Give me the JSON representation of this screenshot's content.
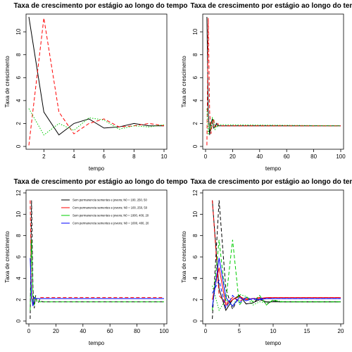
{
  "chart_data": [
    {
      "type": "line",
      "title": "Taxa de crescimento por estágio ao longo do tempo",
      "xlabel": "tempo",
      "ylabel": "Taxa de crescimento",
      "xlim": [
        1,
        10
      ],
      "ylim": [
        0,
        11.3
      ],
      "xticks": [
        2,
        4,
        6,
        8,
        10
      ],
      "yticks": [
        0,
        2,
        4,
        6,
        8,
        10
      ],
      "series": [
        {
          "color": "#000000",
          "style": "solid",
          "x": [
            1,
            2,
            3,
            4,
            5,
            6,
            7,
            8,
            9,
            10
          ],
          "y": [
            11.3,
            3.0,
            1.0,
            2.0,
            2.4,
            1.6,
            1.7,
            2.0,
            1.8,
            1.8
          ]
        },
        {
          "color": "#ff0000",
          "style": "dashed",
          "x": [
            1,
            2,
            3,
            4,
            5,
            6,
            7,
            8,
            9,
            10
          ],
          "y": [
            0.1,
            11.2,
            3.0,
            1.1,
            2.0,
            2.4,
            1.7,
            1.8,
            2.0,
            1.8
          ]
        },
        {
          "color": "#00cc00",
          "style": "dotted",
          "x": [
            1,
            2,
            3,
            4,
            5,
            6,
            7,
            8,
            9,
            10
          ],
          "y": [
            3.3,
            1.0,
            2.0,
            1.4,
            2.5,
            2.3,
            1.5,
            1.8,
            1.7,
            1.9
          ]
        }
      ]
    },
    {
      "type": "line",
      "title": "Taxa de crescimento por estágio ao longo do tempo",
      "xlabel": "tempo",
      "ylabel": "Taxa de crescimento",
      "xlim": [
        0,
        100
      ],
      "ylim": [
        0,
        11.3
      ],
      "xticks": [
        0,
        20,
        40,
        60,
        80,
        100
      ],
      "yticks": [
        0,
        2,
        4,
        6,
        8,
        10
      ],
      "series": [
        {
          "color": "#000000",
          "style": "solid",
          "x": [
            1,
            2,
            3,
            4,
            5,
            6,
            7,
            8,
            9,
            10,
            100
          ],
          "y": [
            11.3,
            3.0,
            1.0,
            2.0,
            2.4,
            1.6,
            1.7,
            2.0,
            1.8,
            1.8,
            1.8
          ]
        },
        {
          "color": "#ff0000",
          "style": "dashed",
          "x": [
            1,
            2,
            3,
            4,
            5,
            6,
            7,
            8,
            9,
            10,
            100
          ],
          "y": [
            0.1,
            11.2,
            3.0,
            1.1,
            2.0,
            2.4,
            1.7,
            1.8,
            2.0,
            1.8,
            1.8
          ]
        },
        {
          "color": "#00cc00",
          "style": "dotted",
          "x": [
            1,
            2,
            3,
            4,
            5,
            6,
            7,
            8,
            9,
            10,
            100
          ],
          "y": [
            3.3,
            1.0,
            2.0,
            1.4,
            2.5,
            2.3,
            1.5,
            1.8,
            1.7,
            1.9,
            1.8
          ]
        }
      ]
    },
    {
      "type": "line",
      "title": "Taxa de crescimento por estágio ao longo do tempo",
      "xlabel": "tempo",
      "ylabel": "Taxa de crescimento",
      "xlim": [
        0,
        100
      ],
      "ylim": [
        0,
        12
      ],
      "xticks": [
        0,
        20,
        40,
        60,
        80,
        100
      ],
      "yticks": [
        0,
        2,
        4,
        6,
        8,
        10,
        12
      ],
      "legend": {
        "position": "top-right",
        "entries": [
          {
            "label": "Sem permanencia sementes e jovens; N0 = 100, 250, 50",
            "color": "#000000"
          },
          {
            "label": "Com permanencia sementes e jovens; N0 = 100, 250, 50",
            "color": "#ff0000"
          },
          {
            "label": "Sem permanencia sementes e jovens; N0 = 1000, 400, 20",
            "color": "#00cc00"
          },
          {
            "label": "Com permanencia sementes e jovens; N0 = 1000, 400, 20",
            "color": "#0000ff"
          }
        ]
      },
      "series": [
        {
          "color": "#000000",
          "style": "dashed",
          "x": [
            1,
            2,
            3,
            4,
            5,
            6,
            7,
            8,
            10,
            100
          ],
          "y": [
            0.2,
            11.3,
            3.0,
            1.2,
            2.4,
            1.8,
            1.7,
            2.0,
            1.8,
            1.8
          ]
        },
        {
          "color": "#ff0000",
          "style": "dashed",
          "x": [
            1,
            2,
            3,
            4,
            5,
            6,
            7,
            8,
            10,
            100
          ],
          "y": [
            11.3,
            2.4,
            1.6,
            2.2,
            2.0,
            2.1,
            2.1,
            2.2,
            2.2,
            2.2
          ]
        },
        {
          "color": "#00cc00",
          "style": "dashed",
          "x": [
            1,
            2,
            3,
            4,
            5,
            6,
            7,
            8,
            10,
            100
          ],
          "y": [
            1.0,
            7.6,
            1.9,
            1.5,
            2.3,
            1.8,
            1.9,
            1.8,
            1.8,
            1.8
          ]
        },
        {
          "color": "#0000ff",
          "style": "solid",
          "x": [
            1,
            2,
            3,
            4,
            5,
            6,
            7,
            8,
            10,
            100
          ],
          "y": [
            5.9,
            2.2,
            1.4,
            2.2,
            2.1,
            2.1,
            2.1,
            2.1,
            2.1,
            2.1
          ]
        }
      ]
    },
    {
      "type": "line",
      "title": "Taxa de crescimento por estágio ao longo do tempo",
      "xlabel": "tempo",
      "ylabel": "Taxa de crescimento",
      "xlim": [
        0,
        20
      ],
      "ylim": [
        0,
        12
      ],
      "xticks": [
        0,
        5,
        10,
        15,
        20
      ],
      "yticks": [
        0,
        2,
        4,
        6,
        8,
        10,
        12
      ],
      "series": [
        {
          "color": "#000000",
          "style": "dashed",
          "x": [
            1,
            2,
            3,
            4,
            5,
            6,
            7,
            8,
            9,
            10,
            11,
            12,
            20
          ],
          "y": [
            0.2,
            11.3,
            3.0,
            1.1,
            2.4,
            1.6,
            1.7,
            2.2,
            1.6,
            1.9,
            1.8,
            1.8,
            1.8
          ]
        },
        {
          "color": "#000000",
          "style": "solid",
          "x": [
            1,
            2,
            3,
            4,
            5,
            6,
            7,
            8,
            9,
            10,
            12,
            20
          ],
          "y": [
            11.3,
            3.0,
            1.0,
            2.0,
            2.4,
            1.6,
            1.7,
            2.0,
            1.8,
            1.8,
            1.8,
            1.8
          ]
        },
        {
          "color": "#ff0000",
          "style": "dashed",
          "x": [
            1,
            2,
            3,
            4,
            5,
            6,
            7,
            8,
            9,
            10,
            12,
            20
          ],
          "y": [
            11.3,
            2.4,
            1.6,
            2.2,
            1.9,
            2.1,
            2.1,
            2.2,
            2.1,
            2.2,
            2.2,
            2.2
          ]
        },
        {
          "color": "#ff0000",
          "style": "solid",
          "x": [
            1,
            2,
            3,
            4,
            5,
            6,
            7,
            8,
            9,
            10,
            12,
            20
          ],
          "y": [
            2.0,
            5.0,
            1.5,
            2.0,
            2.3,
            2.0,
            2.1,
            2.1,
            2.2,
            2.2,
            2.2,
            2.2
          ]
        },
        {
          "color": "#00cc00",
          "style": "dashed",
          "x": [
            1,
            2,
            3,
            4,
            5,
            6,
            7,
            8,
            9,
            10,
            11,
            12,
            20
          ],
          "y": [
            1.0,
            7.6,
            1.9,
            7.6,
            1.5,
            2.3,
            1.8,
            2.4,
            1.5,
            2.0,
            1.8,
            1.8,
            1.8
          ]
        },
        {
          "color": "#00cc00",
          "style": "dotted",
          "x": [
            1,
            2,
            3,
            4,
            5,
            6,
            7,
            8,
            9,
            10,
            12,
            20
          ],
          "y": [
            3.3,
            1.0,
            2.0,
            1.4,
            2.5,
            2.3,
            1.5,
            1.8,
            1.7,
            1.9,
            1.8,
            1.8
          ]
        },
        {
          "color": "#0000ff",
          "style": "solid",
          "x": [
            1,
            2,
            3,
            4,
            5,
            6,
            7,
            8,
            9,
            10,
            12,
            20
          ],
          "y": [
            1.3,
            5.9,
            2.2,
            1.4,
            2.2,
            1.9,
            2.1,
            2.0,
            2.1,
            2.1,
            2.1,
            2.1
          ]
        },
        {
          "color": "#0000ff",
          "style": "dashed",
          "x": [
            1,
            2,
            3,
            4,
            5,
            6,
            7,
            8,
            9,
            10,
            12,
            20
          ],
          "y": [
            2.6,
            3.8,
            1.2,
            2.4,
            1.7,
            2.2,
            2.0,
            2.1,
            2.1,
            2.1,
            2.1,
            2.1
          ]
        }
      ]
    }
  ]
}
